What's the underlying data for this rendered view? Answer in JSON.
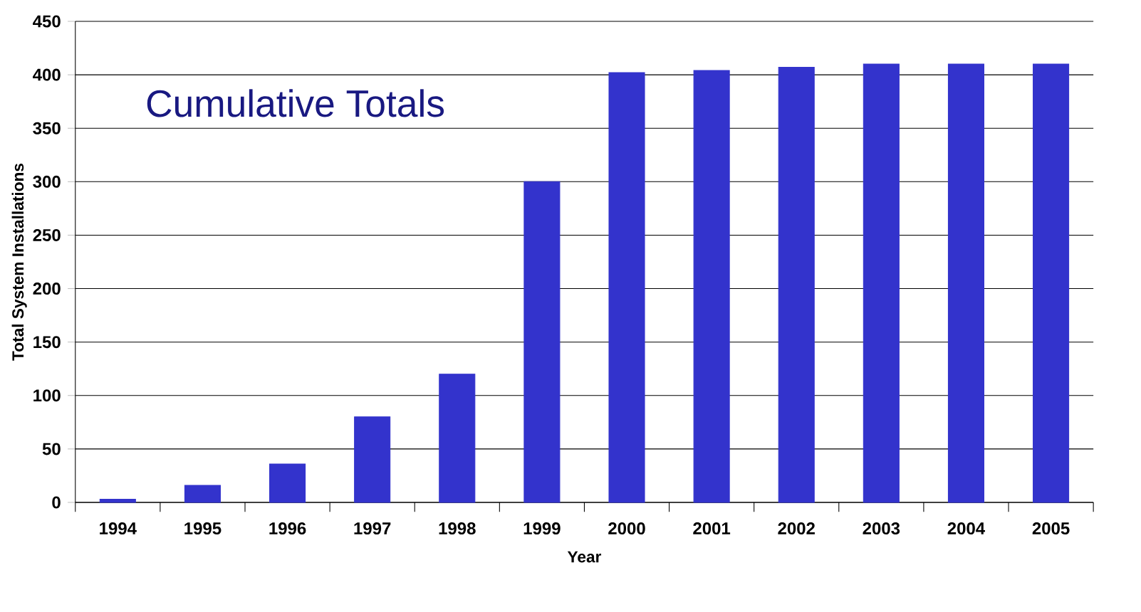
{
  "chart_data": {
    "type": "bar",
    "title": "Cumulative Totals",
    "xlabel": "Year",
    "ylabel": "Total System Installations",
    "categories": [
      "1994",
      "1995",
      "1996",
      "1997",
      "1998",
      "1999",
      "2000",
      "2001",
      "2002",
      "2003",
      "2004",
      "2005"
    ],
    "values": [
      3,
      16,
      36,
      80,
      120,
      300,
      402,
      404,
      407,
      410,
      410,
      410
    ],
    "color": "#3333cc",
    "ylim": [
      0,
      450
    ],
    "yticks": [
      0,
      50,
      100,
      150,
      200,
      250,
      300,
      350,
      400,
      450
    ],
    "grid": "y"
  }
}
